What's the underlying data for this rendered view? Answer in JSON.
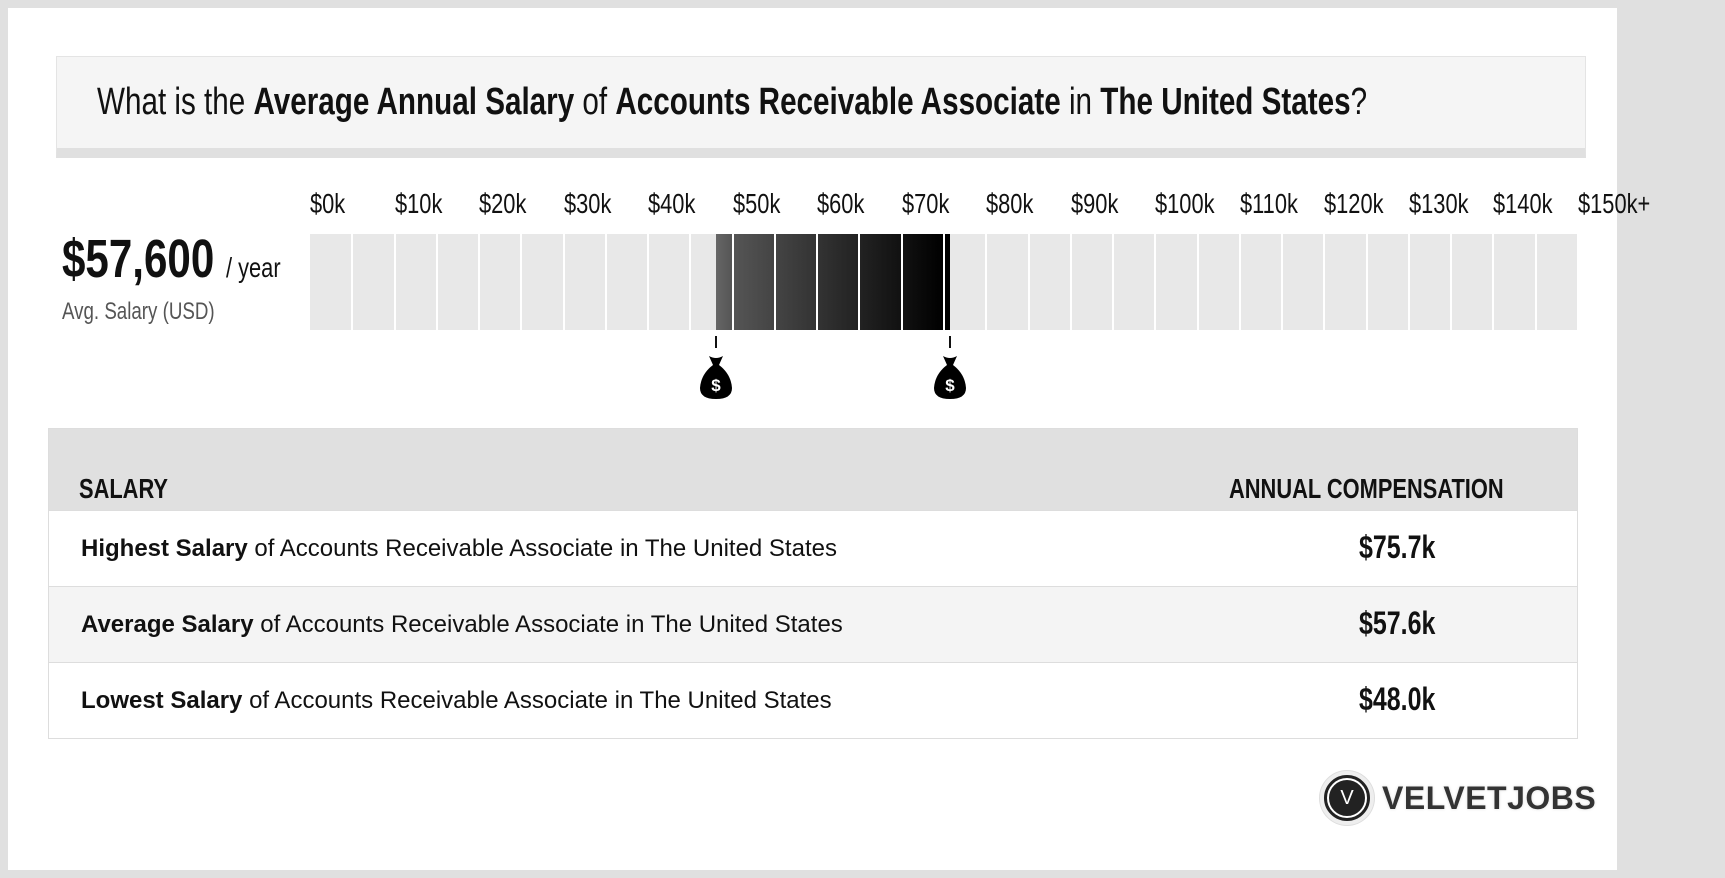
{
  "title": {
    "p1": "What is the ",
    "b1": "Average Annual Salary",
    "p2": " of ",
    "b2": "Accounts Receivable Associate",
    "p3": " in ",
    "b3": "The United States",
    "p4": "?"
  },
  "summary": {
    "amount": "$57,600",
    "per": "/ year",
    "label": "Avg. Salary (USD)"
  },
  "chart_data": {
    "type": "bar",
    "tick_labels": [
      "$0k",
      "$10k",
      "$20k",
      "$30k",
      "$40k",
      "$50k",
      "$60k",
      "$70k",
      "$80k",
      "$90k",
      "$100k",
      "$110k",
      "$120k",
      "$130k",
      "$140k",
      "$150k+"
    ],
    "xlim": [
      0,
      150
    ],
    "segment_size": 5,
    "range_low": 48.0,
    "range_high": 75.7,
    "average": 57.6,
    "unit": "k USD",
    "colors": {
      "empty": "#e8e8e8",
      "range_start": "#666666",
      "range_end": "#000000"
    }
  },
  "markers": [
    {
      "icon": "money-bag-icon",
      "symbol": "$",
      "value": 48.0
    },
    {
      "icon": "money-bag-icon",
      "symbol": "$",
      "value": 75.7
    }
  ],
  "table": {
    "headers": [
      "SALARY",
      "ANNUAL COMPENSATION"
    ],
    "rows": [
      {
        "bold": "Highest Salary",
        "rest": " of Accounts Receivable Associate in The United States",
        "value": "$75.7k"
      },
      {
        "bold": "Average Salary",
        "rest": " of Accounts Receivable Associate in The United States",
        "value": "$57.6k"
      },
      {
        "bold": "Lowest Salary",
        "rest": " of Accounts Receivable Associate in The United States",
        "value": "$48.0k"
      }
    ]
  },
  "logo": {
    "letter": "V",
    "text": "VELVETJOBS"
  }
}
